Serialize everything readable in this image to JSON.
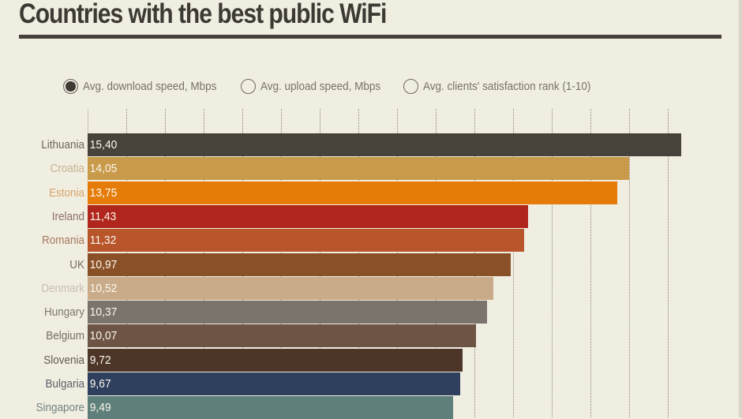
{
  "header": {
    "title": "Countries with the best public WiFi"
  },
  "legend": {
    "options": [
      {
        "label": "Avg. download speed, Mbps",
        "selected": true
      },
      {
        "label": "Avg. upload speed, Mbps",
        "selected": false
      },
      {
        "label": "Avg. clients' satisfaction rank (1-10)",
        "selected": false
      }
    ]
  },
  "rows": [
    {
      "country": "Lithuania",
      "value": "15,40",
      "bar_color": "#47423a",
      "label_color": "#6a665e"
    },
    {
      "country": "Croatia",
      "value": "14,05",
      "bar_color": "#c99a4a",
      "label_color": "#c9b38e"
    },
    {
      "country": "Estonia",
      "value": "13,75",
      "bar_color": "#e57c09",
      "label_color": "#d9a56a"
    },
    {
      "country": "Ireland",
      "value": "11,43",
      "bar_color": "#b0261c",
      "label_color": "#8d6f6a"
    },
    {
      "country": "Romania",
      "value": "11,32",
      "bar_color": "#b8552b",
      "label_color": "#a77a5e"
    },
    {
      "country": "UK",
      "value": "10,97",
      "bar_color": "#8a5129",
      "label_color": "#7a6c60"
    },
    {
      "country": "Denmark",
      "value": "10,52",
      "bar_color": "#c9ab8a",
      "label_color": "#c9bfb2"
    },
    {
      "country": "Hungary",
      "value": "10,37",
      "bar_color": "#7a746c",
      "label_color": "#7c7870"
    },
    {
      "country": "Belgium",
      "value": "10,07",
      "bar_color": "#6e5444",
      "label_color": "#776e66"
    },
    {
      "country": "Slovenia",
      "value": "9,72",
      "bar_color": "#4d3528",
      "label_color": "#625a52"
    },
    {
      "country": "Bulgaria",
      "value": "9,67",
      "bar_color": "#2f3f5e",
      "label_color": "#5f5f68"
    },
    {
      "country": "Singapore",
      "value": "9,49",
      "bar_color": "#5f7f7a",
      "label_color": "#738480"
    }
  ],
  "chart_data": {
    "type": "bar",
    "orientation": "horizontal",
    "title": "Countries with the best public WiFi",
    "legend": [
      "Avg. download speed, Mbps",
      "Avg. upload speed, Mbps",
      "Avg. clients' satisfaction rank (1-10)"
    ],
    "selected_series": "Avg. download speed, Mbps",
    "categories": [
      "Lithuania",
      "Croatia",
      "Estonia",
      "Ireland",
      "Romania",
      "UK",
      "Denmark",
      "Hungary",
      "Belgium",
      "Slovenia",
      "Bulgaria",
      "Singapore"
    ],
    "series": [
      {
        "name": "Avg. download speed, Mbps",
        "values": [
          15.4,
          14.05,
          13.75,
          11.43,
          11.32,
          10.97,
          10.52,
          10.37,
          10.07,
          9.72,
          9.67,
          9.49
        ]
      }
    ],
    "xlabel": "",
    "ylabel": "",
    "grid": true,
    "legend_position": "top"
  }
}
